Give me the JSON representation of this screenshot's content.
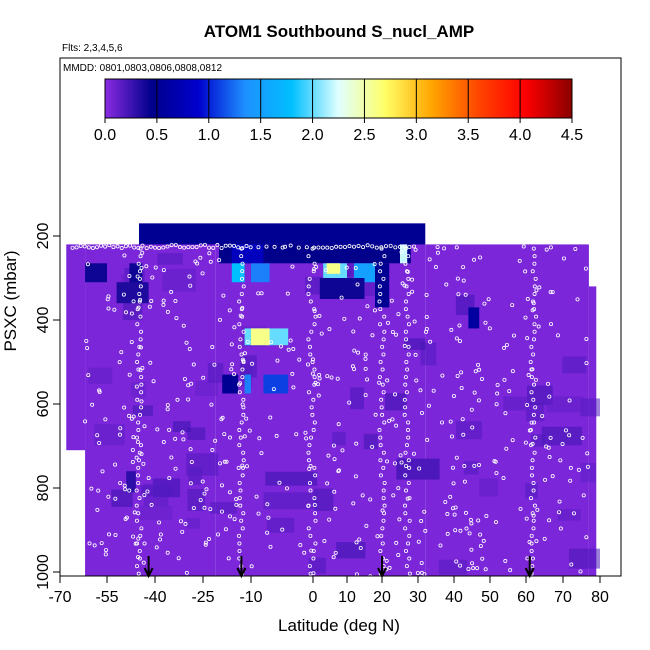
{
  "chart_data": {
    "type": "heatmap",
    "title": "ATOM1 Southbound S_nucl_AMP",
    "subtitle_flights": "Flts: 2,3,4,5,6",
    "subtitle_dates": "MMDD: 0801,0803,0806,0808,0812",
    "xlabel": "Latitude (deg N)",
    "ylabel": "PSXC (mbar)",
    "xlim": [
      -70,
      80
    ],
    "ylim": [
      1020,
      50
    ],
    "x_ticks": [
      -70,
      -55,
      -40,
      -25,
      -10,
      0,
      10,
      20,
      30,
      40,
      50,
      60,
      70,
      80
    ],
    "y_ticks": [
      200,
      400,
      600,
      800,
      1000
    ],
    "colorbar": {
      "min": 0.0,
      "max": 4.5,
      "ticks": [
        "0.0",
        "0.5",
        "1.0",
        "1.5",
        "2.0",
        "2.5",
        "3.0",
        "3.5",
        "4.0",
        "4.5"
      ],
      "colors": [
        "#8a2be2",
        "#00008b",
        "#0000cd",
        "#1e90ff",
        "#00bfff",
        "#e0ffff",
        "#ffff66",
        "#ffa500",
        "#ff4500",
        "#ff0000",
        "#8b0000"
      ]
    },
    "background_value": 0.05,
    "coverage": [
      {
        "lat_min": -68,
        "lat_max": -62,
        "p_top": 220,
        "p_bottom": 710
      },
      {
        "lat_min": -62,
        "lat_max": -45,
        "p_top": 220,
        "p_bottom": 1010
      },
      {
        "lat_min": -45,
        "lat_max": -21,
        "p_top": 170,
        "p_bottom": 1010
      },
      {
        "lat_min": -21,
        "lat_max": 32,
        "p_top": 170,
        "p_bottom": 1010
      },
      {
        "lat_min": 32,
        "lat_max": 77,
        "p_top": 220,
        "p_bottom": 1010
      },
      {
        "lat_min": 77,
        "lat_max": 79,
        "p_top": 320,
        "p_bottom": 1010
      }
    ],
    "cells": [
      {
        "lat_min": -45,
        "lat_max": 32,
        "p_min": 170,
        "p_max": 220,
        "value": 0.5
      },
      {
        "lat_min": -20,
        "lat_max": 28,
        "p_min": 220,
        "p_max": 265,
        "value": 0.45
      },
      {
        "lat_min": -16,
        "lat_max": -8,
        "p_min": 220,
        "p_max": 265,
        "value": 0.8
      },
      {
        "lat_min": -16,
        "lat_max": -12,
        "p_min": 265,
        "p_max": 310,
        "value": 1.8
      },
      {
        "lat_min": -10,
        "lat_max": -7,
        "p_min": 265,
        "p_max": 310,
        "value": 1.3
      },
      {
        "lat_min": 3,
        "lat_max": 10,
        "p_min": 265,
        "p_max": 310,
        "value": 2.0
      },
      {
        "lat_min": 4,
        "lat_max": 8,
        "p_min": 265,
        "p_max": 290,
        "value": 2.6
      },
      {
        "lat_min": 12,
        "lat_max": 18,
        "p_min": 265,
        "p_max": 310,
        "value": 1.5
      },
      {
        "lat_min": 25,
        "lat_max": 27,
        "p_min": 220,
        "p_max": 265,
        "value": 2.2
      },
      {
        "lat_min": -62,
        "lat_max": -55,
        "p_min": 265,
        "p_max": 310,
        "value": 0.4
      },
      {
        "lat_min": -48,
        "lat_max": -44,
        "p_min": 265,
        "p_max": 320,
        "value": 0.4
      },
      {
        "lat_min": -52,
        "lat_max": -42,
        "p_min": 310,
        "p_max": 360,
        "value": 0.35
      },
      {
        "lat_min": 2,
        "lat_max": 15,
        "p_min": 300,
        "p_max": 350,
        "value": 0.4
      },
      {
        "lat_min": 18,
        "lat_max": 22,
        "p_min": 265,
        "p_max": 370,
        "value": 0.5
      },
      {
        "lat_min": 44,
        "lat_max": 47,
        "p_min": 370,
        "p_max": 420,
        "value": 0.6
      },
      {
        "lat_min": -12,
        "lat_max": -4,
        "p_min": 420,
        "p_max": 460,
        "value": 2.0
      },
      {
        "lat_min": -10,
        "lat_max": -7,
        "p_min": 420,
        "p_max": 460,
        "value": 2.6
      },
      {
        "lat_min": -19,
        "lat_max": -14,
        "p_min": 530,
        "p_max": 575,
        "value": 0.5
      },
      {
        "lat_min": -12,
        "lat_max": -10,
        "p_min": 530,
        "p_max": 575,
        "value": 1.3
      },
      {
        "lat_min": -8,
        "lat_max": -4,
        "p_min": 530,
        "p_max": 575,
        "value": 1.1
      },
      {
        "lat_min": -49,
        "lat_max": -46,
        "p_min": 760,
        "p_max": 810,
        "value": 0.3
      },
      {
        "lat_min": 24,
        "lat_max": 36,
        "p_min": 730,
        "p_max": 780,
        "value": 0.2
      }
    ],
    "arrows_lat": [
      -42,
      -13,
      20,
      61
    ]
  }
}
